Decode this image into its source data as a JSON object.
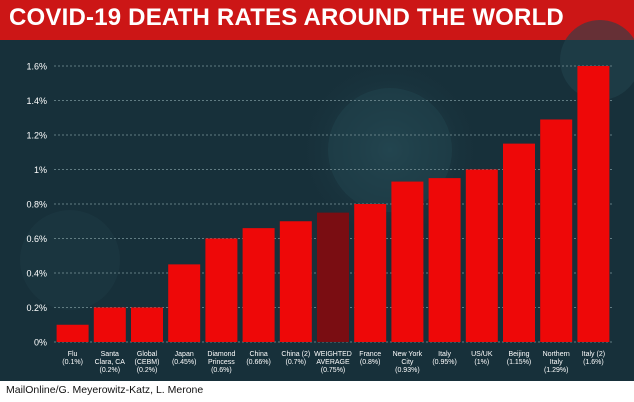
{
  "title": "COVID-19 DEATH RATES AROUND THE WORLD",
  "credit": "MailOnline/G. Meyerowitz-Katz, L. Merone",
  "colors": {
    "title_bg": "#cc1616",
    "bar": "#ee0808",
    "bar_highlight": "#7a0d12",
    "background": "#17303a",
    "grid": "#6f8a90",
    "text": "#ffffff"
  },
  "chart_data": {
    "type": "bar",
    "title": "COVID-19 DEATH RATES AROUND THE WORLD",
    "xlabel": "",
    "ylabel": "",
    "ylim": [
      0,
      1.6
    ],
    "yticks": [
      "0%",
      "0.2%",
      "0.4%",
      "0.6%",
      "0.8%",
      "1%",
      "1.2%",
      "1.4%",
      "1.6%"
    ],
    "grid": true,
    "highlight_index": 7,
    "categories": [
      [
        "Flu",
        "(0.1%)"
      ],
      [
        "Santa",
        "Clara, CA",
        "(0.2%)"
      ],
      [
        "Global",
        "(CEBM)",
        "(0.2%)"
      ],
      [
        "Japan",
        "(0.45%)"
      ],
      [
        "Diamond",
        "Princess",
        "(0.6%)"
      ],
      [
        "China",
        "(0.66%)"
      ],
      [
        "China (2)",
        "(0.7%)"
      ],
      [
        "WEIGHTED",
        "AVERAGE",
        "(0.75%)"
      ],
      [
        "France",
        "(0.8%)"
      ],
      [
        "New York",
        "City",
        "(0.93%)"
      ],
      [
        "Italy",
        "(0.95%)"
      ],
      [
        "US/UK",
        "(1%)"
      ],
      [
        "Beijing",
        "(1.15%)"
      ],
      [
        "Northern",
        "Italy",
        "(1.29%)"
      ],
      [
        "Italy (2)",
        "(1.6%)"
      ]
    ],
    "values": [
      0.1,
      0.2,
      0.2,
      0.45,
      0.6,
      0.66,
      0.7,
      0.75,
      0.8,
      0.93,
      0.95,
      1.0,
      1.15,
      1.29,
      1.6
    ]
  }
}
